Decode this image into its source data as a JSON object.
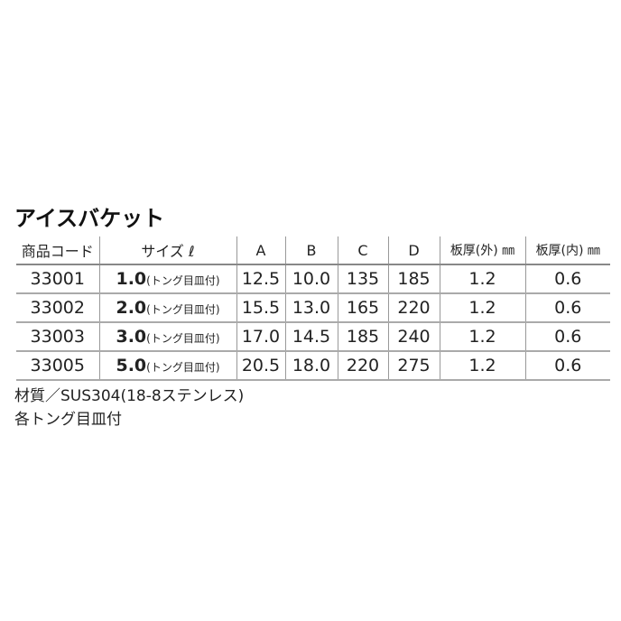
{
  "title": "アイスバケット",
  "table": {
    "headers": [
      "商品コード",
      "サイズ ℓ",
      "A",
      "B",
      "C",
      "D",
      "板厚(外) ㎜",
      "板厚(内) ㎜"
    ],
    "rows": [
      {
        "code": "33001",
        "size": "1.0",
        "size_note": "(トング目皿付)",
        "a": "12.5",
        "b": "10.0",
        "c": "135",
        "d": "185",
        "outer": "1.2",
        "inner": "0.6"
      },
      {
        "code": "33002",
        "size": "2.0",
        "size_note": "(トング目皿付)",
        "a": "15.5",
        "b": "13.0",
        "c": "165",
        "d": "220",
        "outer": "1.2",
        "inner": "0.6"
      },
      {
        "code": "33003",
        "size": "3.0",
        "size_note": "(トング目皿付)",
        "a": "17.0",
        "b": "14.5",
        "c": "185",
        "d": "240",
        "outer": "1.2",
        "inner": "0.6"
      },
      {
        "code": "33005",
        "size": "5.0",
        "size_note": "(トング目皿付)",
        "a": "20.5",
        "b": "18.0",
        "c": "220",
        "d": "275",
        "outer": "1.2",
        "inner": "0.6"
      }
    ]
  },
  "notes": [
    "材質／SUS304(18-8ステンレス)",
    "各トング目皿付"
  ]
}
